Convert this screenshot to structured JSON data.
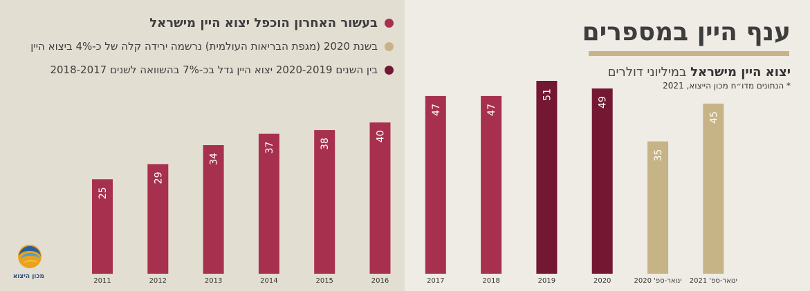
{
  "header": {
    "title": "ענף היין במספרים",
    "subtitle_bold": "יצוא היין מישראל",
    "subtitle_rest": " במיליוני דולרים",
    "note": "* הנתונים מדו״ח מכון הייצוא, 2021"
  },
  "bullets": [
    {
      "text": "בעשור האחרון הוכפל יצוא היין מישראל",
      "color": "#a8304f"
    },
    {
      "text": "בשנת 2020 (מגפת הבריאות העולמית) נרשמה ירידה קלה של כ-4% ביצוא היין",
      "color": "#c7b486"
    },
    {
      "text": "בין השנים 2020-2019 יצוא היין גדל בכ-7% בהשוואה לשנים 2018-2017",
      "color": "#731733"
    }
  ],
  "logo": {
    "text": "מכון היצוא",
    "icon": "export-institute-logo-icon"
  },
  "colors": {
    "primary": "#a8304f",
    "dark": "#731733",
    "light": "#c7b486",
    "title_bar": "#c7b486"
  },
  "chart_data": {
    "type": "bar",
    "title": "",
    "xlabel": "",
    "ylabel": "",
    "ylim": [
      0,
      60
    ],
    "categories": [
      "2011",
      "2012",
      "2013",
      "2014",
      "2015",
      "2016",
      "2017",
      "2018",
      "2019",
      "2020",
      "ינואר-ספ' 2020",
      "ינואר-ספ' 2021"
    ],
    "values": [
      25,
      29,
      34,
      37,
      38,
      40,
      47,
      47,
      51,
      49,
      35,
      45
    ],
    "bar_colors": [
      "#a8304f",
      "#a8304f",
      "#a8304f",
      "#a8304f",
      "#a8304f",
      "#a8304f",
      "#a8304f",
      "#a8304f",
      "#731733",
      "#731733",
      "#c7b486",
      "#c7b486"
    ],
    "grid": false,
    "legend": "none"
  }
}
